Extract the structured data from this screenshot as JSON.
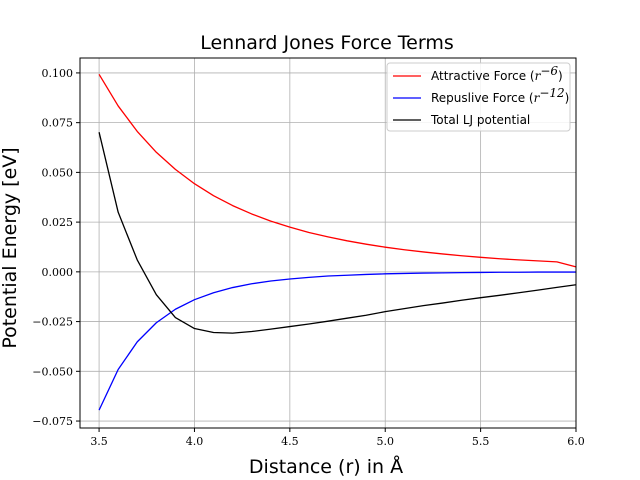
{
  "chart_data": {
    "type": "line",
    "title": "Lennard Jones Force Terms",
    "xlabel": "Distance (r) in Å",
    "ylabel": "Potential Energy [eV]",
    "xlim": [
      3.5,
      6.0
    ],
    "ylim": [
      -0.075,
      0.1
    ],
    "xticks": [
      "3.5",
      "4.0",
      "4.5",
      "5.0",
      "5.5",
      "6.0"
    ],
    "yticks": [
      "0.100",
      "0.075",
      "0.050",
      "0.025",
      "0.000",
      "−0.025",
      "−0.050",
      "−0.075"
    ],
    "grid": true,
    "legend_position": "top-right",
    "x": [
      3.5,
      3.6,
      3.7,
      3.8,
      3.9,
      4.0,
      4.1,
      4.2,
      4.3,
      4.4,
      4.5,
      4.6,
      4.7,
      4.8,
      4.9,
      5.0,
      5.1,
      5.2,
      5.3,
      5.4,
      5.5,
      5.6,
      5.7,
      5.8,
      5.9,
      6.0
    ],
    "series": [
      {
        "name": "Attractive Force (r⁻⁶)",
        "color": "#ff0000",
        "values": [
          0.0993,
          0.0834,
          0.0706,
          0.0601,
          0.0515,
          0.0443,
          0.0383,
          0.0333,
          0.0291,
          0.0255,
          0.0225,
          0.0198,
          0.0176,
          0.0156,
          0.0139,
          0.0124,
          0.0111,
          0.01,
          0.009,
          0.0081,
          0.0073,
          0.0066,
          0.006,
          0.0055,
          0.005,
          0.0025
        ]
      },
      {
        "name": "Repuslive Force (r⁻¹²)",
        "color": "#0000ff",
        "values": [
          -0.0695,
          -0.0491,
          -0.0352,
          -0.0256,
          -0.0188,
          -0.014,
          -0.0105,
          -0.0079,
          -0.006,
          -0.0046,
          -0.0036,
          -0.0028,
          -0.0021,
          -0.0017,
          -0.0013,
          -0.001,
          -0.0008,
          -0.0006,
          -0.0005,
          -0.0004,
          -0.0003,
          -0.0002,
          -0.0002,
          -0.0001,
          -0.0001,
          -0.0001
        ]
      },
      {
        "name": "Total LJ potential",
        "color": "#000000",
        "values": [
          0.0702,
          0.03,
          0.006,
          -0.0115,
          -0.023,
          -0.0285,
          -0.0305,
          -0.0308,
          -0.03,
          -0.0288,
          -0.0275,
          -0.0262,
          -0.0248,
          -0.0233,
          -0.0218,
          -0.02,
          -0.0185,
          -0.017,
          -0.0157,
          -0.0143,
          -0.013,
          -0.0118,
          -0.0105,
          -0.0092,
          -0.0078,
          -0.0065
        ]
      }
    ],
    "legend_labels": [
      {
        "text": "Attractive Force (",
        "sup_base": "r",
        "sup_exp": "−6",
        "tail": ")"
      },
      {
        "text": "Repuslive Force (",
        "sup_base": "r",
        "sup_exp": "−12",
        "tail": ")"
      },
      {
        "text": "Total LJ potential",
        "sup_base": "",
        "sup_exp": "",
        "tail": ""
      }
    ]
  }
}
